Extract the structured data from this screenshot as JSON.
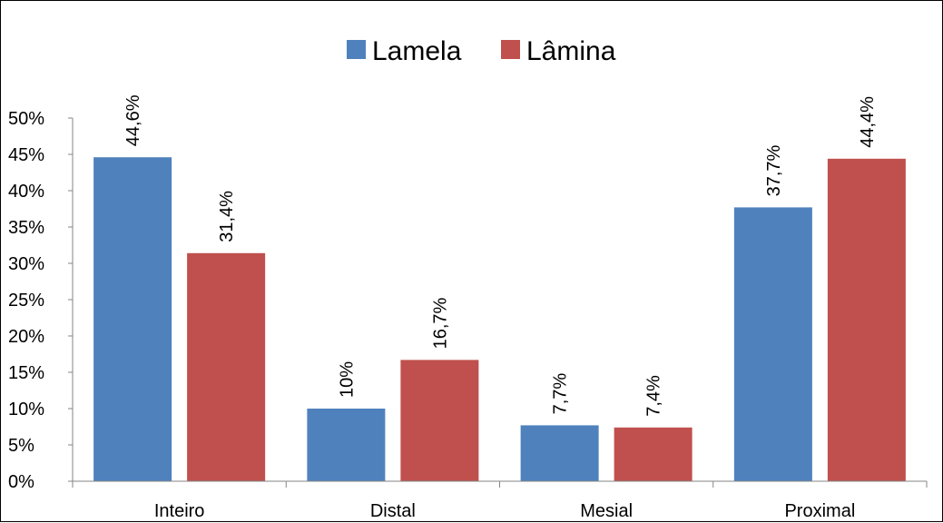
{
  "chart_data": {
    "type": "bar",
    "categories": [
      "Inteiro",
      "Distal",
      "Mesial",
      "Proximal"
    ],
    "series": [
      {
        "name": "Lamela",
        "values": [
          44.6,
          10,
          7.7,
          37.7
        ],
        "labels": [
          "44,6%",
          "10%",
          "7,7%",
          "37,7%"
        ],
        "color": "#4F81BD"
      },
      {
        "name": "Lâmina",
        "values": [
          31.4,
          16.7,
          7.4,
          44.4
        ],
        "labels": [
          "31,4%",
          "16,7%",
          "7,4%",
          "44,4%"
        ],
        "color": "#C0504D"
      }
    ],
    "ylim": [
      0,
      50
    ],
    "yticks": [
      0,
      5,
      10,
      15,
      20,
      25,
      30,
      35,
      40,
      45,
      50
    ],
    "ytick_labels": [
      "0%",
      "5%",
      "10%",
      "15%",
      "20%",
      "25%",
      "30%",
      "35%",
      "40%",
      "45%",
      "50%"
    ],
    "legend_position": "top",
    "grid": false,
    "axis_color": "#868686"
  }
}
